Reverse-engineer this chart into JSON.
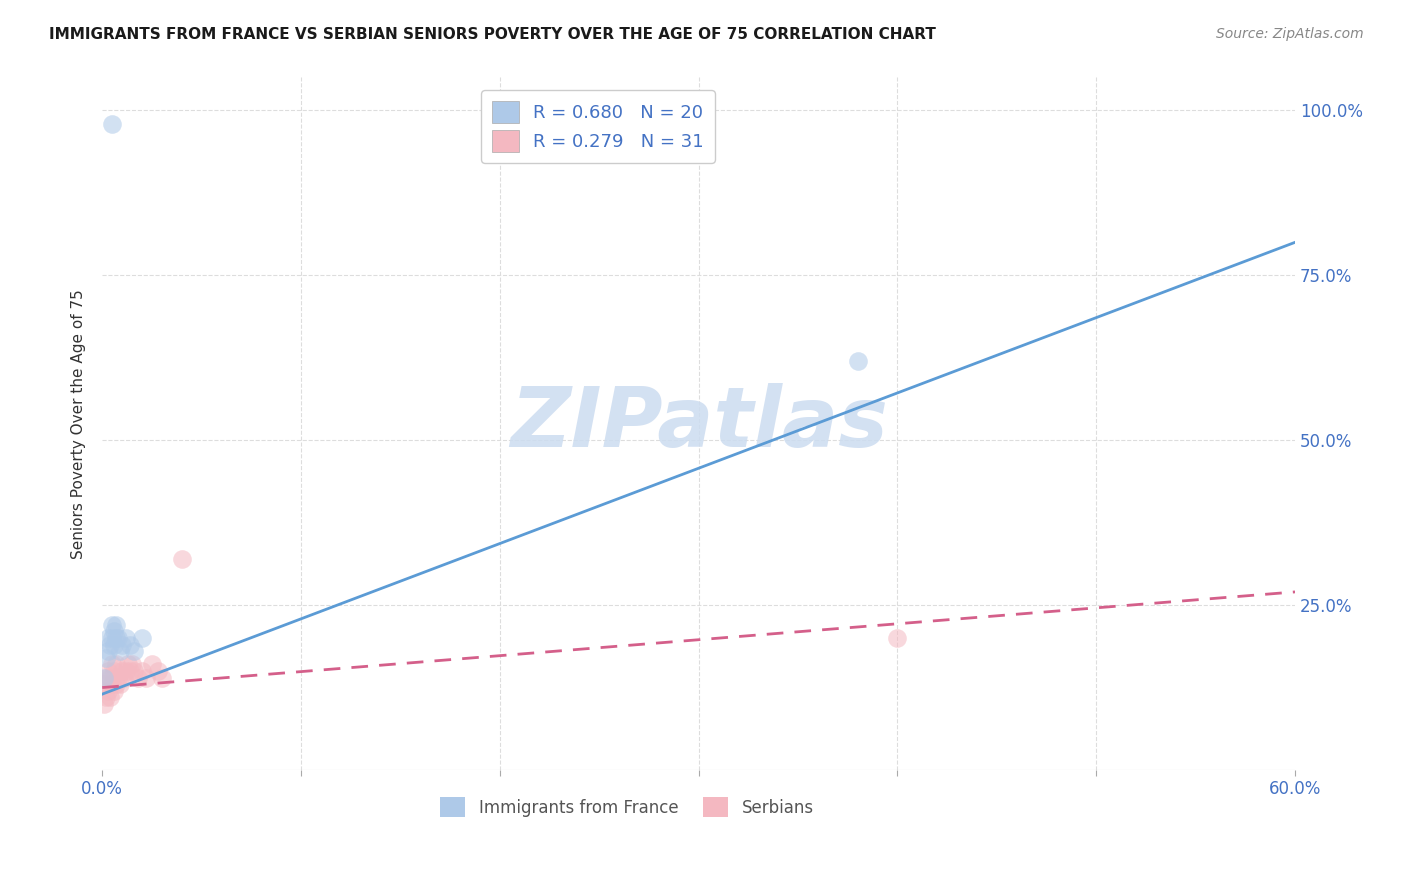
{
  "title": "IMMIGRANTS FROM FRANCE VS SERBIAN SENIORS POVERTY OVER THE AGE OF 75 CORRELATION CHART",
  "source": "Source: ZipAtlas.com",
  "ylabel": "Seniors Poverty Over the Age of 75",
  "x_min": 0.0,
  "x_max": 0.6,
  "y_min": 0.0,
  "y_max": 1.05,
  "x_ticks": [
    0.0,
    0.1,
    0.2,
    0.3,
    0.4,
    0.5,
    0.6
  ],
  "x_tick_labels": [
    "0.0%",
    "",
    "",
    "",
    "",
    "",
    "60.0%"
  ],
  "y_ticks": [
    0.0,
    0.25,
    0.5,
    0.75,
    1.0
  ],
  "y_tick_labels": [
    "",
    "25.0%",
    "50.0%",
    "75.0%",
    "100.0%"
  ],
  "legend_labels": [
    "Immigrants from France",
    "Serbians"
  ],
  "blue_color": "#aec9e8",
  "pink_color": "#f4b8c1",
  "blue_line_color": "#5b9bd5",
  "pink_line_color": "#d45f8a",
  "pink_line_dash": "#d45f8a",
  "watermark_text": "ZIPatlas",
  "watermark_color": "#ccdcf0",
  "R_blue": 0.68,
  "N_blue": 20,
  "R_pink": 0.279,
  "N_pink": 31,
  "blue_scatter_x": [
    0.001,
    0.002,
    0.003,
    0.003,
    0.004,
    0.005,
    0.005,
    0.006,
    0.006,
    0.007,
    0.007,
    0.008,
    0.009,
    0.01,
    0.012,
    0.014,
    0.016,
    0.02,
    0.38,
    0.005
  ],
  "blue_scatter_y": [
    0.14,
    0.17,
    0.18,
    0.2,
    0.19,
    0.2,
    0.22,
    0.19,
    0.21,
    0.2,
    0.22,
    0.2,
    0.18,
    0.19,
    0.2,
    0.19,
    0.18,
    0.2,
    0.62,
    0.98
  ],
  "pink_scatter_x": [
    0.001,
    0.001,
    0.002,
    0.002,
    0.003,
    0.003,
    0.004,
    0.004,
    0.005,
    0.005,
    0.006,
    0.006,
    0.007,
    0.007,
    0.008,
    0.009,
    0.01,
    0.011,
    0.012,
    0.013,
    0.014,
    0.015,
    0.016,
    0.018,
    0.02,
    0.022,
    0.025,
    0.028,
    0.03,
    0.04,
    0.4
  ],
  "pink_scatter_y": [
    0.1,
    0.13,
    0.11,
    0.14,
    0.12,
    0.15,
    0.11,
    0.14,
    0.13,
    0.16,
    0.12,
    0.15,
    0.13,
    0.16,
    0.14,
    0.13,
    0.15,
    0.14,
    0.15,
    0.16,
    0.15,
    0.16,
    0.15,
    0.14,
    0.15,
    0.14,
    0.16,
    0.15,
    0.14,
    0.32,
    0.2
  ],
  "blue_line_x0": 0.0,
  "blue_line_y0": 0.115,
  "blue_line_x1": 0.6,
  "blue_line_y1": 0.8,
  "pink_line_x0": 0.0,
  "pink_line_y0": 0.125,
  "pink_line_x1": 0.6,
  "pink_line_y1": 0.27
}
